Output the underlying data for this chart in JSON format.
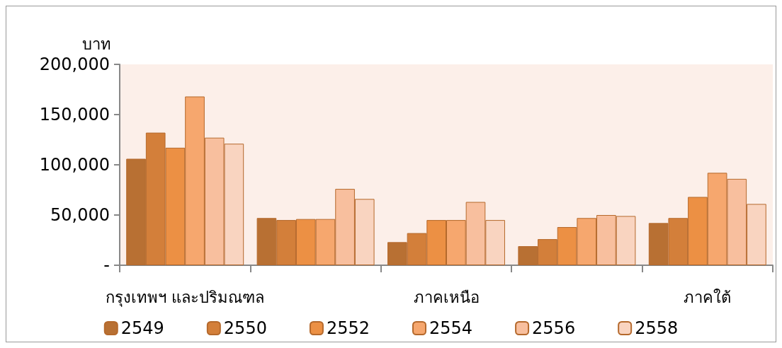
{
  "chart_data": {
    "type": "bar",
    "ylabel": "บาท",
    "categories": [
      "กรุงเทพฯ และปริมณฑล",
      null,
      "ภาคเหนือ",
      null,
      "ภาคใต้"
    ],
    "series": [
      {
        "name": "2549",
        "color": "#b87033",
        "values": [
          106000,
          47000,
          23000,
          19000,
          42000
        ]
      },
      {
        "name": "2550",
        "color": "#d37f3a",
        "values": [
          132000,
          45000,
          32000,
          26000,
          47000
        ]
      },
      {
        "name": "2552",
        "color": "#ec9044",
        "values": [
          117000,
          46000,
          45000,
          38000,
          68000
        ]
      },
      {
        "name": "2554",
        "color": "#f6a76e",
        "values": [
          168000,
          46000,
          45000,
          47000,
          92000
        ]
      },
      {
        "name": "2556",
        "color": "#f8bf9e",
        "values": [
          127000,
          76000,
          63000,
          50000,
          86000
        ]
      },
      {
        "name": "2558",
        "color": "#f9d4c0",
        "values": [
          121000,
          66000,
          45000,
          49000,
          61000
        ]
      }
    ],
    "ylim": [
      0,
      200000
    ],
    "yticks": [
      {
        "value": 0,
        "label": "-"
      },
      {
        "value": 50000,
        "label": "50,000"
      },
      {
        "value": 100000,
        "label": "100,000"
      },
      {
        "value": 150000,
        "label": "150,000"
      },
      {
        "value": 200000,
        "label": "200,000"
      }
    ],
    "grid": false,
    "legend": "bottom"
  }
}
